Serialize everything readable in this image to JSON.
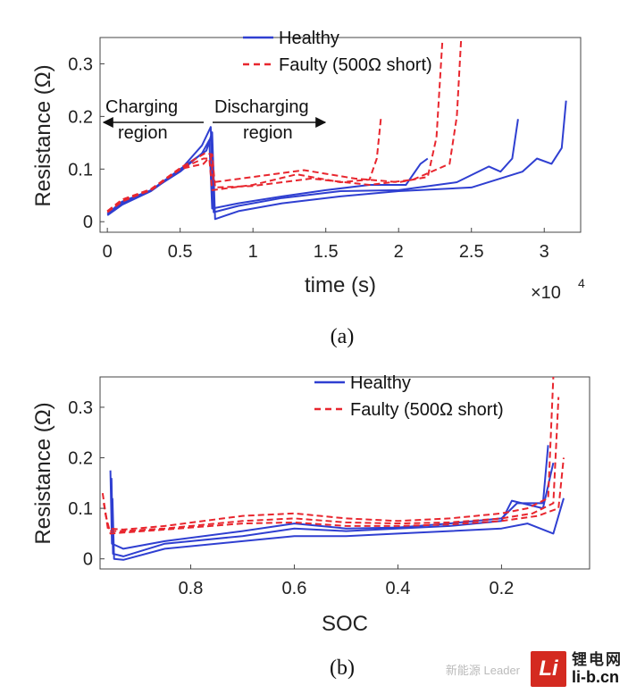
{
  "chart_data": [
    {
      "panel": "(a)",
      "type": "line",
      "xlabel": "time (s)",
      "ylabel": "Resistance (Ω)",
      "x_multiplier": "×10",
      "x_multiplier_exp": "4",
      "xlim": [
        -0.05,
        3.25
      ],
      "ylim": [
        -0.02,
        0.35
      ],
      "xticks": [
        0,
        0.5,
        1,
        1.5,
        2,
        2.5,
        3
      ],
      "xtick_labels": [
        "0",
        "0.5",
        "1",
        "1.5",
        "2",
        "2.5",
        "3"
      ],
      "yticks": [
        0,
        0.1,
        0.2,
        0.3
      ],
      "ytick_labels": [
        "0",
        "0.1",
        "0.2",
        "0.3"
      ],
      "legend": [
        {
          "label": "Healthy",
          "style": "solid",
          "color": "#2f3fd1"
        },
        {
          "label": "Faulty (500Ω short)",
          "style": "dashed",
          "color": "#e8262e"
        }
      ],
      "annotations": [
        {
          "text_lines": [
            "Charging",
            "region"
          ],
          "arrow": "left"
        },
        {
          "text_lines": [
            "Discharging",
            "region"
          ],
          "arrow": "right"
        }
      ],
      "series": [
        {
          "name": "Healthy",
          "color": "#2f3fd1",
          "style": "solid",
          "x": [
            0,
            0.1,
            0.3,
            0.5,
            0.65,
            0.7,
            0.72,
            0.9,
            1.2,
            1.5,
            1.8,
            2.05,
            2.15,
            2.2
          ],
          "y": [
            0.015,
            0.038,
            0.06,
            0.095,
            0.13,
            0.155,
            0.025,
            0.035,
            0.048,
            0.06,
            0.07,
            0.07,
            0.11,
            0.12
          ]
        },
        {
          "name": "Healthy",
          "color": "#2f3fd1",
          "style": "solid",
          "x": [
            0,
            0.1,
            0.3,
            0.5,
            0.65,
            0.71,
            0.73,
            0.9,
            1.2,
            1.6,
            2.0,
            2.4,
            2.62,
            2.7,
            2.78,
            2.82
          ],
          "y": [
            0.012,
            0.032,
            0.058,
            0.098,
            0.145,
            0.18,
            0.018,
            0.03,
            0.045,
            0.058,
            0.06,
            0.075,
            0.105,
            0.095,
            0.12,
            0.195
          ]
        },
        {
          "name": "Healthy",
          "color": "#2f3fd1",
          "style": "solid",
          "x": [
            0,
            0.1,
            0.3,
            0.5,
            0.68,
            0.72,
            0.74,
            0.9,
            1.2,
            1.6,
            2.0,
            2.5,
            2.85,
            2.95,
            3.05,
            3.12,
            3.15
          ],
          "y": [
            0.015,
            0.035,
            0.06,
            0.1,
            0.135,
            0.17,
            0.005,
            0.02,
            0.035,
            0.048,
            0.058,
            0.065,
            0.095,
            0.12,
            0.11,
            0.14,
            0.23
          ]
        },
        {
          "name": "Faulty (500Ω short)",
          "color": "#e8262e",
          "style": "dashed",
          "x": [
            0,
            0.1,
            0.3,
            0.5,
            0.66,
            0.7,
            0.72,
            1.0,
            1.3,
            1.6,
            1.8,
            1.85,
            1.88
          ],
          "y": [
            0.02,
            0.04,
            0.06,
            0.1,
            0.12,
            0.12,
            0.06,
            0.07,
            0.09,
            0.075,
            0.08,
            0.12,
            0.2
          ]
        },
        {
          "name": "Faulty (500Ω short)",
          "color": "#e8262e",
          "style": "dashed",
          "x": [
            0,
            0.1,
            0.3,
            0.5,
            0.66,
            0.71,
            0.73,
            1.0,
            1.35,
            1.7,
            2.0,
            2.2,
            2.26,
            2.3
          ],
          "y": [
            0.018,
            0.038,
            0.062,
            0.1,
            0.11,
            0.125,
            0.075,
            0.085,
            0.098,
            0.082,
            0.075,
            0.085,
            0.16,
            0.34
          ]
        },
        {
          "name": "Faulty (500Ω short)",
          "color": "#e8262e",
          "style": "dashed",
          "x": [
            0,
            0.1,
            0.3,
            0.5,
            0.67,
            0.72,
            0.74,
            1.0,
            1.4,
            1.8,
            2.1,
            2.35,
            2.4,
            2.43
          ],
          "y": [
            0.02,
            0.042,
            0.062,
            0.102,
            0.13,
            0.128,
            0.065,
            0.068,
            0.082,
            0.07,
            0.08,
            0.11,
            0.2,
            0.35
          ]
        }
      ]
    },
    {
      "panel": "(b)",
      "type": "line",
      "xlabel": "SOC",
      "ylabel": "Resistance (Ω)",
      "xlim": [
        0.975,
        0.03
      ],
      "ylim": [
        -0.02,
        0.36
      ],
      "xticks": [
        0.8,
        0.6,
        0.4,
        0.2
      ],
      "xtick_labels": [
        "0.8",
        "0.6",
        "0.4",
        "0.2"
      ],
      "yticks": [
        0,
        0.1,
        0.2,
        0.3
      ],
      "ytick_labels": [
        "0",
        "0.1",
        "0.2",
        "0.3"
      ],
      "legend": [
        {
          "label": "Healthy",
          "style": "solid",
          "color": "#2f3fd1"
        },
        {
          "label": "Faulty (500Ω short)",
          "style": "dashed",
          "color": "#e8262e"
        }
      ],
      "series": [
        {
          "name": "Healthy",
          "color": "#2f3fd1",
          "style": "solid",
          "x": [
            0.955,
            0.952,
            0.93,
            0.85,
            0.7,
            0.6,
            0.5,
            0.4,
            0.3,
            0.2,
            0.17,
            0.12,
            0.11
          ],
          "y": [
            0.175,
            0.03,
            0.02,
            0.035,
            0.055,
            0.07,
            0.06,
            0.062,
            0.07,
            0.08,
            0.11,
            0.11,
            0.225
          ]
        },
        {
          "name": "Healthy",
          "color": "#2f3fd1",
          "style": "solid",
          "x": [
            0.953,
            0.95,
            0.93,
            0.85,
            0.7,
            0.6,
            0.5,
            0.4,
            0.3,
            0.2,
            0.18,
            0.12,
            0.1
          ],
          "y": [
            0.16,
            0.01,
            0.005,
            0.03,
            0.045,
            0.06,
            0.055,
            0.06,
            0.065,
            0.075,
            0.115,
            0.1,
            0.19
          ]
        },
        {
          "name": "Healthy",
          "color": "#2f3fd1",
          "style": "solid",
          "x": [
            0.951,
            0.948,
            0.93,
            0.85,
            0.7,
            0.6,
            0.5,
            0.4,
            0.3,
            0.2,
            0.15,
            0.1,
            0.08
          ],
          "y": [
            0.12,
            0.0,
            -0.002,
            0.02,
            0.035,
            0.045,
            0.045,
            0.05,
            0.055,
            0.06,
            0.07,
            0.05,
            0.12
          ]
        },
        {
          "name": "Faulty (500Ω short)",
          "color": "#e8262e",
          "style": "dashed",
          "x": [
            0.97,
            0.96,
            0.93,
            0.85,
            0.7,
            0.6,
            0.5,
            0.4,
            0.3,
            0.2,
            0.15,
            0.11,
            0.1
          ],
          "y": [
            0.13,
            0.06,
            0.058,
            0.065,
            0.085,
            0.09,
            0.08,
            0.075,
            0.08,
            0.09,
            0.1,
            0.12,
            0.36
          ]
        },
        {
          "name": "Faulty (500Ω short)",
          "color": "#e8262e",
          "style": "dashed",
          "x": [
            0.968,
            0.958,
            0.93,
            0.85,
            0.7,
            0.6,
            0.5,
            0.4,
            0.3,
            0.2,
            0.14,
            0.1,
            0.09
          ],
          "y": [
            0.11,
            0.055,
            0.055,
            0.06,
            0.075,
            0.08,
            0.072,
            0.07,
            0.072,
            0.08,
            0.09,
            0.11,
            0.32
          ]
        },
        {
          "name": "Faulty (500Ω short)",
          "color": "#e8262e",
          "style": "dashed",
          "x": [
            0.965,
            0.955,
            0.93,
            0.85,
            0.7,
            0.6,
            0.5,
            0.4,
            0.3,
            0.2,
            0.13,
            0.09,
            0.08
          ],
          "y": [
            0.09,
            0.05,
            0.052,
            0.058,
            0.07,
            0.072,
            0.065,
            0.065,
            0.068,
            0.075,
            0.085,
            0.1,
            0.2
          ]
        }
      ]
    }
  ],
  "watermark": {
    "small_text": "新能源 Leader",
    "logo_text": "Li",
    "cn_text": "锂电网",
    "url_text": "li-b.cn"
  }
}
